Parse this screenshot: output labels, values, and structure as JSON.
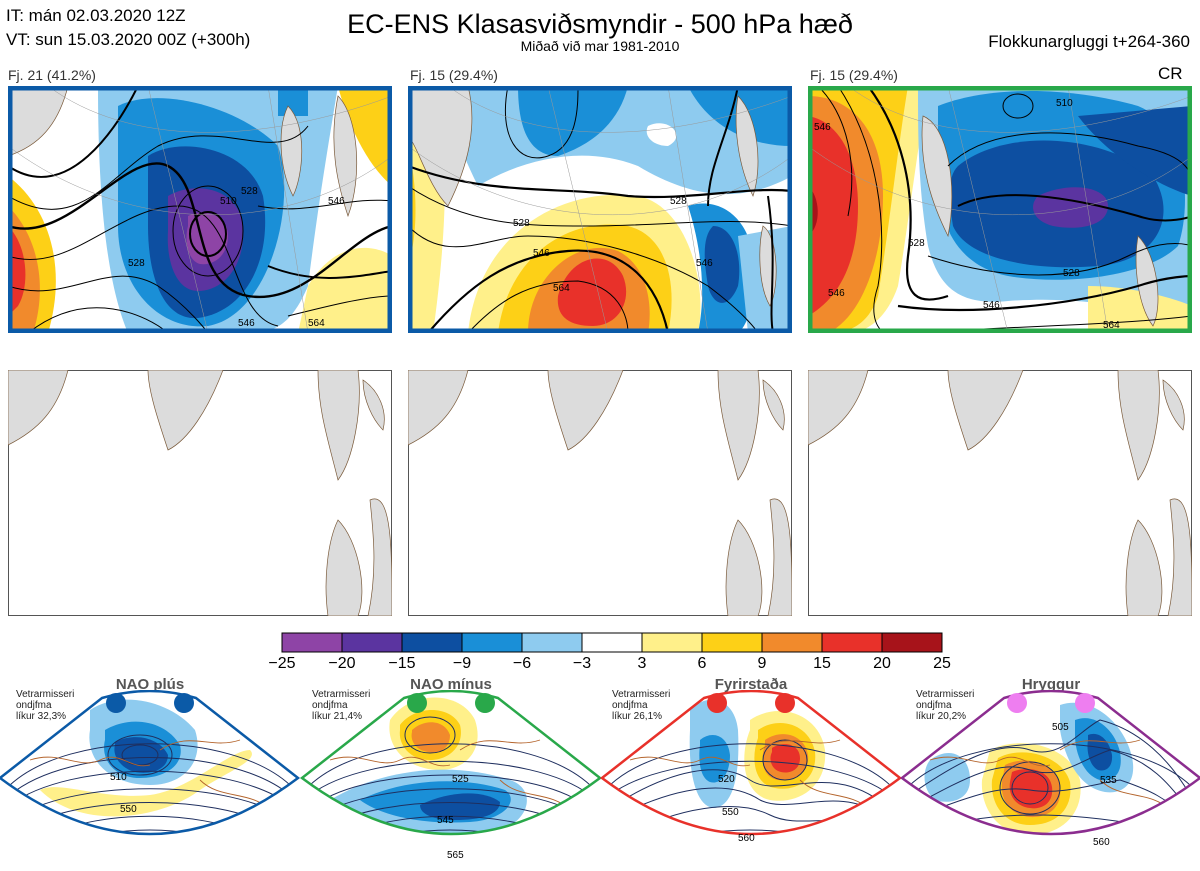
{
  "header": {
    "it_line": "IT: mán 02.03.2020 12Z",
    "vt_line": "VT: sun 15.03.2020 00Z  (+300h)",
    "title": "EC-ENS Klasasviðsmyndir - 500 hPa hæð",
    "subtitle": "Miðað við mar 1981-2010",
    "window": "Flokkunargluggi t+264-360"
  },
  "top_panels": [
    {
      "label": "Fj. 21 (41.2%)",
      "border": "#0b5aa7",
      "badge": ""
    },
    {
      "label": "Fj. 15 (29.4%)",
      "border": "#0b5aa7",
      "badge": ""
    },
    {
      "label": "Fj. 15 (29.4%)",
      "border": "#29a84a",
      "badge": "CR"
    }
  ],
  "contour_labels": {
    "p1": [
      "510",
      "528",
      "546",
      "528",
      "546",
      "564"
    ],
    "p2": [
      "528",
      "546",
      "564",
      "528",
      "546"
    ],
    "p3": [
      "510",
      "528",
      "546",
      "528",
      "546",
      "564",
      "546"
    ]
  },
  "colors": {
    "scale": [
      "#8e44a6",
      "#5b34a0",
      "#0d4fa1",
      "#1a8fd7",
      "#8ecbef",
      "#ffffff",
      "#fff08a",
      "#fdd017",
      "#f18a2c",
      "#e8312a",
      "#a7131a"
    ],
    "land": "#dcdcdc",
    "coast": "#7a5a3a"
  },
  "colorbar": {
    "ticks": [
      "−25",
      "−20",
      "−15",
      "−9",
      "−6",
      "−3",
      "3",
      "6",
      "9",
      "15",
      "20",
      "25"
    ]
  },
  "regimes": [
    {
      "name": "NAO plús",
      "info": [
        "Vetrarmisseri",
        "ondjfma",
        "líkur 32,3%"
      ],
      "dot_color": "#0b5aa7",
      "border": "#0b5aa7",
      "labels": [
        "510",
        "550"
      ]
    },
    {
      "name": "NAO mínus",
      "info": [
        "Vetrarmisseri",
        "ondjfma",
        "líkur 21,4%"
      ],
      "dot_color": "#29a84a",
      "border": "#29a84a",
      "labels": [
        "525",
        "545",
        "565"
      ]
    },
    {
      "name": "Fyrirstaða",
      "info": [
        "Vetrarmisseri",
        "ondjfma",
        "líkur 26,1%"
      ],
      "dot_color": "#e8312a",
      "border": "#e8312a",
      "labels": [
        "520",
        "550",
        "560"
      ]
    },
    {
      "name": "Hryggur",
      "info": [
        "Vetrarmisseri",
        "ondjfma",
        "líkur 20,2%"
      ],
      "dot_color": "#ee7ef0",
      "border": "#8b2d8f",
      "labels": [
        "505",
        "535",
        "560"
      ]
    }
  ],
  "chart_data": {
    "type": "heatmap",
    "title": "EC-ENS Klasasviðsmyndir - 500 hPa hæð",
    "colorbar_ticks": [
      -25,
      -20,
      -15,
      -9,
      -6,
      -3,
      3,
      6,
      9,
      15,
      20,
      25
    ],
    "clusters": [
      {
        "label": "Fj. 21 (41.2%)",
        "members": 21,
        "percent": 41.2
      },
      {
        "label": "Fj. 15 (29.4%)",
        "members": 15,
        "percent": 29.4
      },
      {
        "label": "Fj. 15 (29.4%)",
        "members": 15,
        "percent": 29.4
      }
    ],
    "regimes": [
      {
        "name": "NAO plús",
        "probability": 32.3
      },
      {
        "name": "NAO mínus",
        "probability": 21.4
      },
      {
        "name": "Fyrirstaða",
        "probability": 26.1
      },
      {
        "name": "Hryggur",
        "probability": 20.2
      }
    ]
  }
}
